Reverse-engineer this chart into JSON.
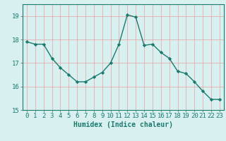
{
  "x": [
    0,
    1,
    2,
    3,
    4,
    5,
    6,
    7,
    8,
    9,
    10,
    11,
    12,
    13,
    14,
    15,
    16,
    17,
    18,
    19,
    20,
    21,
    22,
    23
  ],
  "y": [
    17.9,
    17.8,
    17.8,
    17.2,
    16.8,
    16.5,
    16.2,
    16.2,
    16.4,
    16.6,
    17.0,
    17.8,
    19.05,
    18.95,
    17.75,
    17.8,
    17.45,
    17.2,
    16.65,
    16.55,
    16.2,
    15.8,
    15.45,
    15.45
  ],
  "line_color": "#1a7a6e",
  "marker": "D",
  "markersize": 2.2,
  "linewidth": 1.0,
  "background_color": "#d9f0f0",
  "grid_color": "#e8a0a0",
  "xlabel": "Humidex (Indice chaleur)",
  "xlabel_fontsize": 7,
  "tick_fontsize": 6.5,
  "ylim": [
    15,
    19.5
  ],
  "xlim": [
    -0.5,
    23.5
  ],
  "yticks": [
    15,
    16,
    17,
    18,
    19
  ],
  "xticks": [
    0,
    1,
    2,
    3,
    4,
    5,
    6,
    7,
    8,
    9,
    10,
    11,
    12,
    13,
    14,
    15,
    16,
    17,
    18,
    19,
    20,
    21,
    22,
    23
  ]
}
